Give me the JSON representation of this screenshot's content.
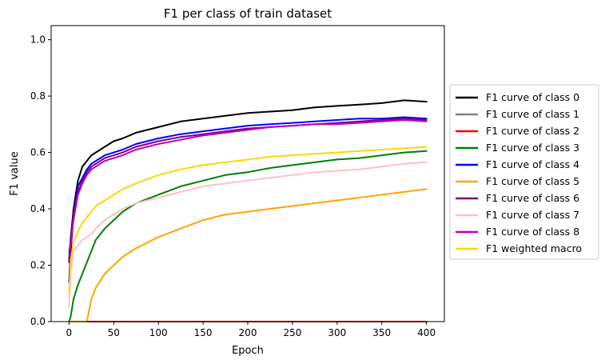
{
  "chart_data": {
    "type": "line",
    "title": "F1 per class of train dataset",
    "xlabel": "Epoch",
    "ylabel": "F1 value",
    "xlim": [
      -20,
      420
    ],
    "ylim": [
      0.0,
      1.05
    ],
    "xticks": [
      0,
      50,
      100,
      150,
      200,
      250,
      300,
      350,
      400
    ],
    "xtick_labels": [
      "0",
      "50",
      "100",
      "150",
      "200",
      "250",
      "300",
      "350",
      "400"
    ],
    "yticks": [
      0.0,
      0.2,
      0.4,
      0.6,
      0.8,
      1.0
    ],
    "ytick_labels": [
      "0.0",
      "0.2",
      "0.4",
      "0.6",
      "0.8",
      "1.0"
    ],
    "grid": false,
    "legend_placement": "outside-right",
    "x": [
      0,
      2,
      5,
      10,
      15,
      20,
      25,
      30,
      40,
      50,
      60,
      75,
      100,
      125,
      150,
      175,
      200,
      225,
      250,
      275,
      300,
      325,
      350,
      375,
      400
    ],
    "series": [
      {
        "name": "F1 curve of class 0",
        "color": "#000000",
        "values": [
          0.22,
          0.3,
          0.4,
          0.5,
          0.55,
          0.57,
          0.59,
          0.6,
          0.62,
          0.64,
          0.65,
          0.67,
          0.69,
          0.71,
          0.72,
          0.73,
          0.74,
          0.745,
          0.75,
          0.76,
          0.765,
          0.77,
          0.775,
          0.785,
          0.78
        ]
      },
      {
        "name": "F1 curve of class 1",
        "color": "#808080",
        "values": [
          0.0,
          0.0,
          0.0,
          0.0,
          0.0,
          0.0,
          0.0,
          0.0,
          0.0,
          0.0,
          0.0,
          0.0,
          0.0,
          0.0,
          0.0,
          0.0,
          0.0,
          0.0,
          0.0,
          0.0,
          0.0,
          0.0,
          0.0,
          0.0,
          0.0
        ]
      },
      {
        "name": "F1 curve of class 2",
        "color": "#ff0000",
        "values": [
          0.0,
          0.0,
          0.0,
          0.0,
          0.0,
          0.0,
          0.0,
          0.0,
          0.0,
          0.0,
          0.0,
          0.0,
          0.0,
          0.0,
          0.0,
          0.0,
          0.0,
          0.0,
          0.0,
          0.0,
          0.0,
          0.0,
          0.0,
          0.0,
          0.0
        ]
      },
      {
        "name": "F1 curve of class 3",
        "color": "#008000",
        "values": [
          0.0,
          0.02,
          0.08,
          0.13,
          0.17,
          0.21,
          0.25,
          0.29,
          0.33,
          0.36,
          0.39,
          0.42,
          0.45,
          0.48,
          0.5,
          0.52,
          0.53,
          0.545,
          0.555,
          0.565,
          0.575,
          0.58,
          0.59,
          0.6,
          0.605
        ]
      },
      {
        "name": "F1 curve of class 4",
        "color": "#0000ff",
        "values": [
          0.14,
          0.25,
          0.38,
          0.48,
          0.51,
          0.54,
          0.56,
          0.57,
          0.59,
          0.6,
          0.61,
          0.63,
          0.65,
          0.665,
          0.675,
          0.685,
          0.695,
          0.7,
          0.705,
          0.71,
          0.715,
          0.72,
          0.72,
          0.725,
          0.72
        ]
      },
      {
        "name": "F1 curve of class 5",
        "color": "#ffa500",
        "values": [
          0.0,
          0.0,
          0.0,
          0.0,
          0.0,
          0.0,
          0.08,
          0.12,
          0.17,
          0.2,
          0.23,
          0.26,
          0.3,
          0.33,
          0.36,
          0.38,
          0.39,
          0.4,
          0.41,
          0.42,
          0.43,
          0.44,
          0.45,
          0.46,
          0.47
        ]
      },
      {
        "name": "F1 curve of class 6",
        "color": "#800080",
        "values": [
          0.21,
          0.28,
          0.38,
          0.46,
          0.5,
          0.53,
          0.55,
          0.56,
          0.58,
          0.59,
          0.6,
          0.62,
          0.64,
          0.655,
          0.665,
          0.675,
          0.685,
          0.69,
          0.695,
          0.7,
          0.705,
          0.71,
          0.715,
          0.72,
          0.715
        ]
      },
      {
        "name": "F1 curve of class 7",
        "color": "#ffc0cb",
        "values": [
          0.05,
          0.18,
          0.25,
          0.27,
          0.29,
          0.3,
          0.31,
          0.33,
          0.36,
          0.38,
          0.4,
          0.42,
          0.44,
          0.46,
          0.48,
          0.49,
          0.5,
          0.51,
          0.52,
          0.53,
          0.535,
          0.54,
          0.55,
          0.56,
          0.565
        ]
      },
      {
        "name": "F1 curve of class 8",
        "color": "#bb00bb",
        "values": [
          0.25,
          0.28,
          0.36,
          0.45,
          0.49,
          0.52,
          0.54,
          0.55,
          0.57,
          0.58,
          0.59,
          0.61,
          0.63,
          0.645,
          0.66,
          0.67,
          0.68,
          0.69,
          0.695,
          0.7,
          0.7,
          0.705,
          0.71,
          0.715,
          0.71
        ]
      },
      {
        "name": "F1 weighted macro",
        "color": "#ffd700",
        "values": [
          0.1,
          0.22,
          0.28,
          0.32,
          0.35,
          0.37,
          0.39,
          0.41,
          0.43,
          0.45,
          0.47,
          0.49,
          0.52,
          0.54,
          0.555,
          0.565,
          0.575,
          0.585,
          0.59,
          0.595,
          0.6,
          0.605,
          0.61,
          0.615,
          0.62
        ]
      }
    ]
  }
}
